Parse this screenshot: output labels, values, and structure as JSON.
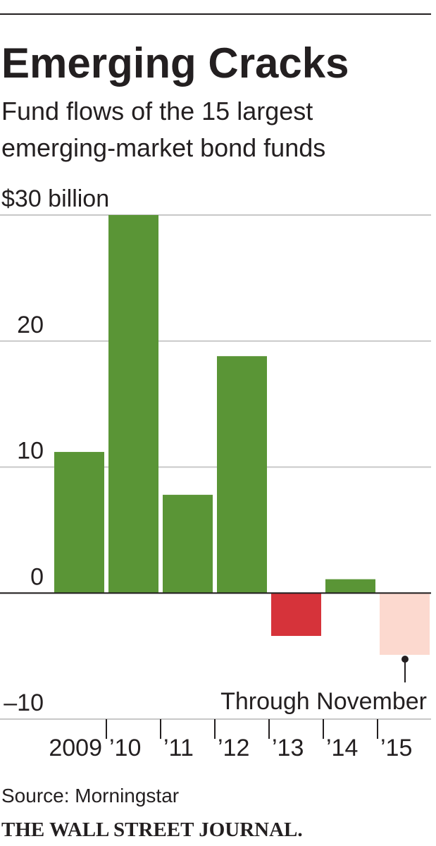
{
  "chart_data": {
    "type": "bar",
    "title": "Emerging Cracks",
    "subtitle": [
      "Fund flows of the 15 largest",
      "emerging-market bond funds"
    ],
    "categories": [
      "2009",
      "’10",
      "’11",
      "’12",
      "’13",
      "’14",
      "’15"
    ],
    "values": [
      11.2,
      30,
      7.8,
      18.8,
      -3.4,
      1.1,
      -4.9
    ],
    "colors": [
      "#5a9536",
      "#5a9536",
      "#5a9536",
      "#5a9536",
      "#d6333a",
      "#5a9536",
      "#fcd9cf"
    ],
    "ylim": [
      -10,
      30
    ],
    "yticks": [
      {
        "value": -10,
        "label": "–10"
      },
      0,
      10,
      20,
      {
        "value": 30,
        "label": "$30 billion"
      }
    ],
    "grid": true,
    "annotation": "Through November",
    "source": "Source: Morningstar",
    "credit": "THE WALL STREET JOURNAL."
  }
}
